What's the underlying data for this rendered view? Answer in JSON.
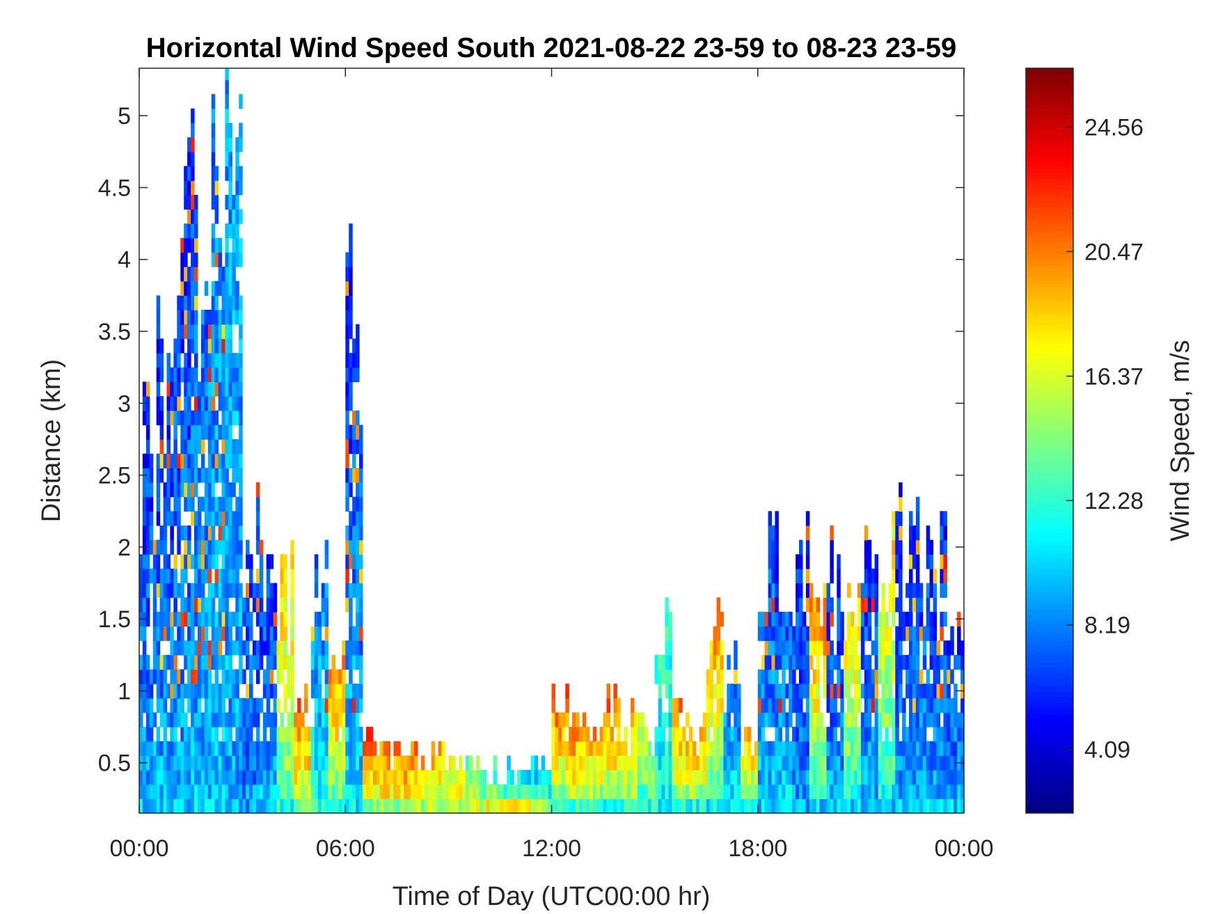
{
  "chart_data": {
    "type": "heatmap",
    "title": "Horizontal Wind Speed South 2021-08-22 23-59 to 08-23 23-59",
    "xlabel": "Time of Day (UTC00:00 hr)",
    "ylabel": "Distance (km)",
    "colorbar_label": "Wind Speed, m/s",
    "xlim_hours": [
      0,
      24
    ],
    "ylim_km": [
      0.15,
      5.33
    ],
    "clim": [
      2.0,
      26.5
    ],
    "colormap": "jet",
    "x_ticks": [
      {
        "value": 0,
        "label": "00:00"
      },
      {
        "value": 6,
        "label": "06:00"
      },
      {
        "value": 12,
        "label": "12:00"
      },
      {
        "value": 18,
        "label": "18:00"
      },
      {
        "value": 24,
        "label": "00:00"
      }
    ],
    "y_ticks": [
      {
        "value": 0.5,
        "label": "0.5"
      },
      {
        "value": 1,
        "label": "1"
      },
      {
        "value": 1.5,
        "label": "1.5"
      },
      {
        "value": 2,
        "label": "2"
      },
      {
        "value": 2.5,
        "label": "2.5"
      },
      {
        "value": 3,
        "label": "3"
      },
      {
        "value": 3.5,
        "label": "3.5"
      },
      {
        "value": 4,
        "label": "4"
      },
      {
        "value": 4.5,
        "label": "4.5"
      },
      {
        "value": 5,
        "label": "5"
      }
    ],
    "colorbar_ticks": [
      {
        "value": 4.09,
        "label": "4.09"
      },
      {
        "value": 8.19,
        "label": "8.19"
      },
      {
        "value": 12.28,
        "label": "12.28"
      },
      {
        "value": 16.37,
        "label": "16.37"
      },
      {
        "value": 20.47,
        "label": "20.47"
      },
      {
        "value": 24.56,
        "label": "24.56"
      }
    ],
    "half_hour_profile_fields": [
      "top_km",
      "near_surface_speed",
      "upper_speed"
    ],
    "half_hour_profile": [
      [
        2.7,
        10,
        6
      ],
      [
        3.2,
        10,
        6
      ],
      [
        4.5,
        10,
        6
      ],
      [
        4.3,
        10,
        7
      ],
      [
        5.0,
        10,
        8
      ],
      [
        5.3,
        9,
        9
      ],
      [
        2.1,
        9,
        6
      ],
      [
        2.0,
        10,
        6
      ],
      [
        1.7,
        12,
        18
      ],
      [
        1.1,
        14,
        22
      ],
      [
        1.8,
        12,
        8
      ],
      [
        1.2,
        12,
        20
      ],
      [
        3.7,
        11,
        6
      ],
      [
        0.65,
        14,
        21
      ],
      [
        0.6,
        15,
        21
      ],
      [
        0.55,
        15,
        21
      ],
      [
        0.55,
        15,
        20
      ],
      [
        0.55,
        15,
        19
      ],
      [
        0.5,
        16,
        18
      ],
      [
        0.45,
        16,
        14
      ],
      [
        0.4,
        17,
        12
      ],
      [
        0.4,
        17,
        10
      ],
      [
        0.4,
        17,
        10
      ],
      [
        0.45,
        15,
        9
      ],
      [
        0.9,
        12,
        21
      ],
      [
        0.8,
        13,
        21
      ],
      [
        0.7,
        12,
        20
      ],
      [
        0.9,
        12,
        21
      ],
      [
        0.75,
        12,
        19
      ],
      [
        0.7,
        12,
        16
      ],
      [
        1.5,
        11,
        12
      ],
      [
        0.8,
        12,
        20
      ],
      [
        0.65,
        12,
        20
      ],
      [
        1.5,
        11,
        20
      ],
      [
        1.2,
        11,
        8
      ],
      [
        0.6,
        11,
        19
      ],
      [
        2.0,
        10,
        7
      ],
      [
        2.0,
        11,
        6
      ],
      [
        1.8,
        9,
        6
      ],
      [
        1.5,
        10,
        20
      ],
      [
        1.8,
        10,
        6
      ],
      [
        1.8,
        10,
        19
      ],
      [
        1.9,
        10,
        6
      ],
      [
        2.0,
        10,
        18
      ],
      [
        2.0,
        10,
        6
      ],
      [
        2.1,
        10,
        6
      ],
      [
        1.8,
        10,
        6
      ],
      [
        1.4,
        10,
        6
      ]
    ]
  }
}
